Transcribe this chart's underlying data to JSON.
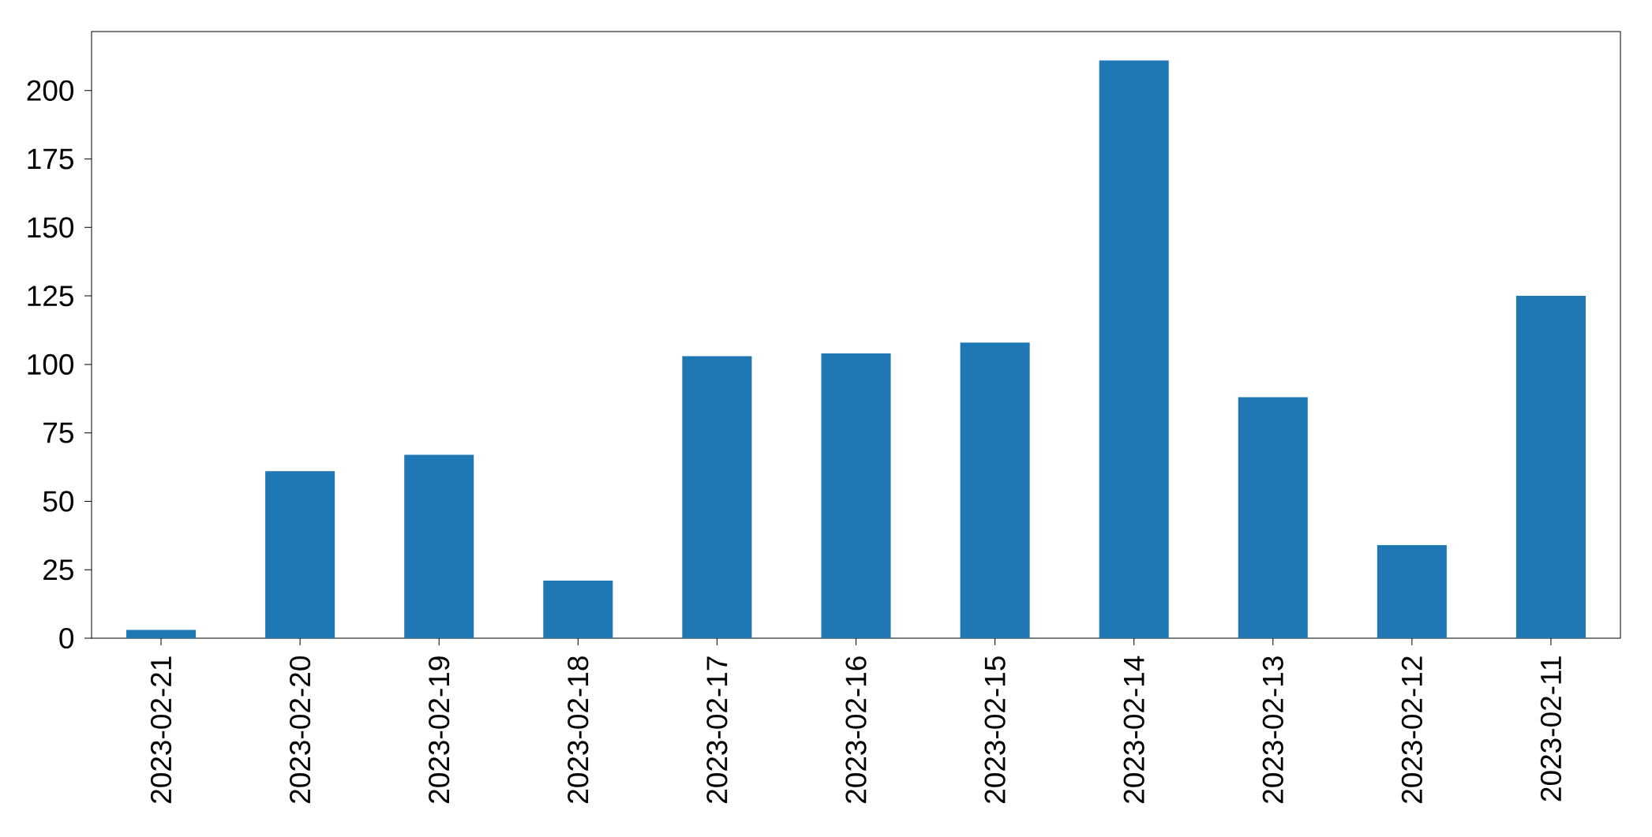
{
  "chart_data": {
    "type": "bar",
    "categories": [
      "2023-02-21",
      "2023-02-20",
      "2023-02-19",
      "2023-02-18",
      "2023-02-17",
      "2023-02-16",
      "2023-02-15",
      "2023-02-14",
      "2023-02-13",
      "2023-02-12",
      "2023-02-11"
    ],
    "values": [
      3,
      61,
      67,
      21,
      103,
      104,
      108,
      211,
      88,
      34,
      125
    ],
    "color": "#1f77b4",
    "ylim": [
      0,
      221.55
    ],
    "yticks": [
      0,
      25,
      50,
      75,
      100,
      125,
      150,
      175,
      200
    ],
    "grid": false
  }
}
